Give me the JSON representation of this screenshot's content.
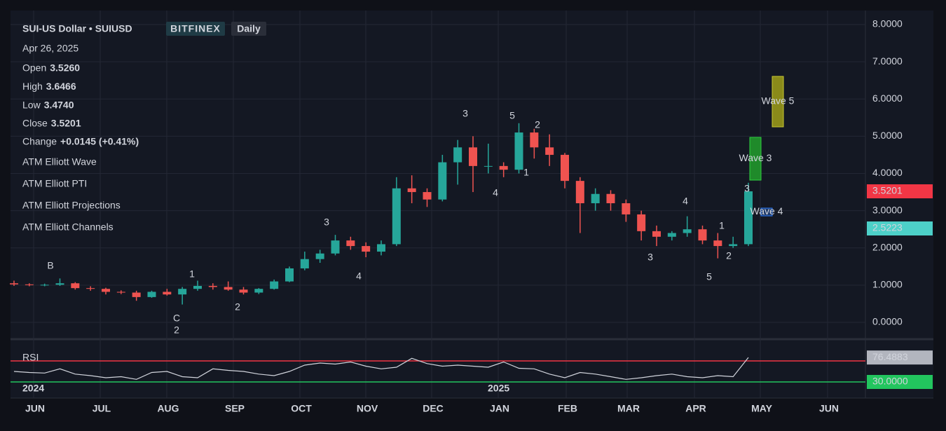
{
  "chart_data": {
    "type": "candlestick",
    "title": "SUI-US Dollar • SUIUSD",
    "exchange": "BITFINEX",
    "interval": "Daily",
    "date": "Apr 26, 2025",
    "ohlc": [
      {
        "label": "Open",
        "value": "3.5260"
      },
      {
        "label": "High",
        "value": "3.6466"
      },
      {
        "label": "Low",
        "value": "3.4740"
      },
      {
        "label": "Close",
        "value": "3.5201"
      }
    ],
    "change_label": "Change",
    "change": "+0.0145 (+0.41%)",
    "indicators": [
      "ATM Elliott Wave",
      "ATM Elliott PTI",
      "ATM Elliott Projections",
      "ATM Elliott Channels"
    ],
    "up_color": "#26a69a",
    "down_color": "#ef5350",
    "ylim": [
      0,
      8
    ],
    "yticks": [
      {
        "value": 8,
        "label": "8.0000"
      },
      {
        "value": 7,
        "label": "7.0000"
      },
      {
        "value": 6,
        "label": "6.0000"
      },
      {
        "value": 5,
        "label": "5.0000"
      },
      {
        "value": 4,
        "label": "4.0000"
      },
      {
        "value": 3,
        "label": "3.0000"
      },
      {
        "value": 2,
        "label": "2.0000"
      },
      {
        "value": 1,
        "label": "1.0000"
      },
      {
        "value": 0,
        "label": "0.0000"
      }
    ],
    "grid": true,
    "months": [
      "JUN",
      "JUL",
      "AUG",
      "SEP",
      "OCT",
      "NOV",
      "DEC",
      "JAN",
      "FEB",
      "MAR",
      "APR",
      "MAY",
      "JUN"
    ],
    "years": [
      "2024",
      "2025"
    ],
    "candles": [
      [
        1.05,
        1.12,
        0.98,
        1.02
      ],
      [
        1.02,
        1.05,
        0.97,
        1.0
      ],
      [
        1.0,
        1.04,
        0.97,
        1.01
      ],
      [
        1.01,
        1.18,
        0.98,
        1.05
      ],
      [
        1.05,
        1.08,
        0.88,
        0.92
      ],
      [
        0.92,
        0.97,
        0.85,
        0.9
      ],
      [
        0.9,
        0.93,
        0.75,
        0.82
      ],
      [
        0.82,
        0.86,
        0.76,
        0.8
      ],
      [
        0.8,
        0.85,
        0.58,
        0.68
      ],
      [
        0.68,
        0.85,
        0.66,
        0.82
      ],
      [
        0.82,
        0.9,
        0.72,
        0.75
      ],
      [
        0.75,
        0.95,
        0.48,
        0.9
      ],
      [
        0.9,
        1.12,
        0.85,
        0.98
      ],
      [
        0.98,
        1.05,
        0.88,
        0.95
      ],
      [
        0.95,
        1.1,
        0.85,
        0.88
      ],
      [
        0.88,
        0.95,
        0.75,
        0.8
      ],
      [
        0.8,
        0.92,
        0.76,
        0.9
      ],
      [
        0.9,
        1.15,
        0.88,
        1.1
      ],
      [
        1.1,
        1.5,
        1.08,
        1.45
      ],
      [
        1.45,
        1.9,
        1.4,
        1.7
      ],
      [
        1.7,
        1.95,
        1.6,
        1.85
      ],
      [
        1.85,
        2.35,
        1.8,
        2.2
      ],
      [
        2.2,
        2.3,
        1.95,
        2.05
      ],
      [
        2.05,
        2.15,
        1.75,
        1.9
      ],
      [
        1.9,
        2.2,
        1.8,
        2.1
      ],
      [
        2.1,
        3.9,
        2.05,
        3.6
      ],
      [
        3.6,
        3.95,
        3.2,
        3.5
      ],
      [
        3.5,
        3.6,
        3.1,
        3.3
      ],
      [
        3.3,
        4.5,
        3.25,
        4.3
      ],
      [
        4.3,
        4.9,
        3.7,
        4.7
      ],
      [
        4.7,
        5.0,
        3.5,
        4.2
      ],
      [
        4.2,
        4.8,
        4.0,
        4.2
      ],
      [
        4.2,
        4.3,
        3.9,
        4.1
      ],
      [
        4.1,
        5.35,
        4.0,
        5.1
      ],
      [
        5.1,
        5.2,
        4.4,
        4.7
      ],
      [
        4.7,
        5.05,
        4.2,
        4.5
      ],
      [
        4.5,
        4.55,
        3.6,
        3.8
      ],
      [
        3.8,
        3.9,
        2.4,
        3.2
      ],
      [
        3.2,
        3.6,
        3.0,
        3.45
      ],
      [
        3.45,
        3.55,
        3.0,
        3.2
      ],
      [
        3.2,
        3.3,
        2.7,
        2.9
      ],
      [
        2.9,
        3.0,
        2.2,
        2.45
      ],
      [
        2.45,
        2.6,
        2.05,
        2.3
      ],
      [
        2.3,
        2.45,
        2.2,
        2.4
      ],
      [
        2.4,
        2.85,
        2.3,
        2.5
      ],
      [
        2.5,
        2.6,
        2.1,
        2.2
      ],
      [
        2.2,
        2.4,
        1.72,
        2.05
      ],
      [
        2.05,
        2.3,
        2.0,
        2.1
      ],
      [
        2.1,
        3.75,
        2.05,
        3.52
      ]
    ],
    "price_tags": [
      {
        "value": 3.5201,
        "color": "#f23645"
      },
      {
        "value": 2.5223,
        "color": "#4dd0c8"
      }
    ],
    "wave_labels": [
      "3",
      "5",
      "2",
      "1",
      "4",
      "4",
      "3",
      "5",
      "1",
      "2",
      "3",
      "2",
      "C",
      "B",
      "1",
      "2",
      "3",
      "4"
    ],
    "projections": [
      "Wave 5",
      "Wave 3",
      "Wave 4"
    ],
    "rsi": {
      "name": "RSI",
      "ylim": [
        0,
        100
      ],
      "color": "#d1d4dc",
      "levels": [
        {
          "value": 70,
          "color": "#f23645"
        },
        {
          "value": 30,
          "color": "#22c55e"
        }
      ],
      "level_tag": {
        "value": 30,
        "label": "30.0000"
      },
      "values": [
        50,
        48,
        47,
        55,
        45,
        42,
        38,
        40,
        35,
        48,
        50,
        40,
        38,
        55,
        52,
        50,
        45,
        42,
        50,
        62,
        66,
        64,
        68,
        60,
        55,
        58,
        75,
        65,
        60,
        62,
        60,
        58,
        68,
        56,
        55,
        45,
        38,
        48,
        45,
        40,
        35,
        38,
        42,
        45,
        40,
        38,
        42,
        40,
        76.4883
      ],
      "last": 76.4883
    }
  }
}
